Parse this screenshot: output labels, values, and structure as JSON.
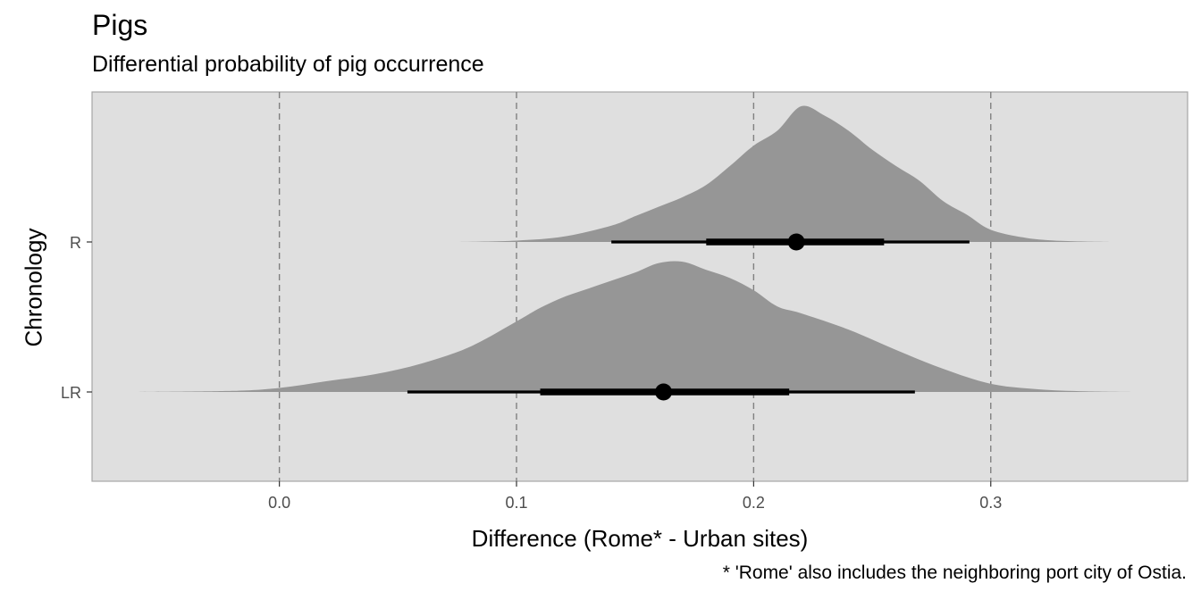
{
  "title": "Pigs",
  "subtitle": "Differential probability of pig occurrence",
  "caption": "* 'Rome' also includes the neighboring port city of Ostia.",
  "colors": {
    "panel_background": "#dfdfdf",
    "gridline": "#808080",
    "density_fill": "#969696",
    "interval": "#000000"
  },
  "chart_data": {
    "type": "halfeye",
    "xlabel": "Difference (Rome* - Urban sites)",
    "ylabel": "Chronology",
    "xlim": [
      -0.079,
      0.383
    ],
    "x_ticks": [
      0.0,
      0.1,
      0.2,
      0.3
    ],
    "x_tick_labels": [
      "0.0",
      "0.1",
      "0.2",
      "0.3"
    ],
    "grid": "vertical dashed major gridlines",
    "categories": [
      "R",
      "LR"
    ],
    "series": [
      {
        "category": "R",
        "point": 0.218,
        "interval_66": [
          0.18,
          0.255
        ],
        "interval_95": [
          0.14,
          0.291
        ],
        "density": {
          "x": [
            0.075,
            0.1,
            0.12,
            0.14,
            0.15,
            0.16,
            0.17,
            0.18,
            0.19,
            0.2,
            0.21,
            0.22,
            0.23,
            0.24,
            0.25,
            0.26,
            0.27,
            0.28,
            0.29,
            0.3,
            0.315,
            0.33,
            0.35
          ],
          "y": [
            0.0,
            0.01,
            0.04,
            0.12,
            0.19,
            0.26,
            0.33,
            0.42,
            0.56,
            0.71,
            0.82,
            1.0,
            0.93,
            0.82,
            0.68,
            0.56,
            0.45,
            0.3,
            0.2,
            0.09,
            0.03,
            0.008,
            0.0
          ]
        }
      },
      {
        "category": "LR",
        "point": 0.162,
        "interval_66": [
          0.11,
          0.215
        ],
        "interval_95": [
          0.054,
          0.268
        ],
        "density": {
          "x": [
            -0.06,
            -0.02,
            0.0,
            0.02,
            0.04,
            0.06,
            0.08,
            0.1,
            0.11,
            0.12,
            0.13,
            0.14,
            0.15,
            0.16,
            0.17,
            0.18,
            0.19,
            0.2,
            0.21,
            0.22,
            0.24,
            0.26,
            0.28,
            0.3,
            0.32,
            0.34,
            0.362
          ],
          "y": [
            0.0,
            0.008,
            0.03,
            0.08,
            0.13,
            0.21,
            0.33,
            0.52,
            0.62,
            0.7,
            0.76,
            0.82,
            0.88,
            0.95,
            0.96,
            0.9,
            0.84,
            0.75,
            0.63,
            0.58,
            0.46,
            0.31,
            0.17,
            0.06,
            0.02,
            0.005,
            0.0
          ]
        }
      }
    ]
  }
}
